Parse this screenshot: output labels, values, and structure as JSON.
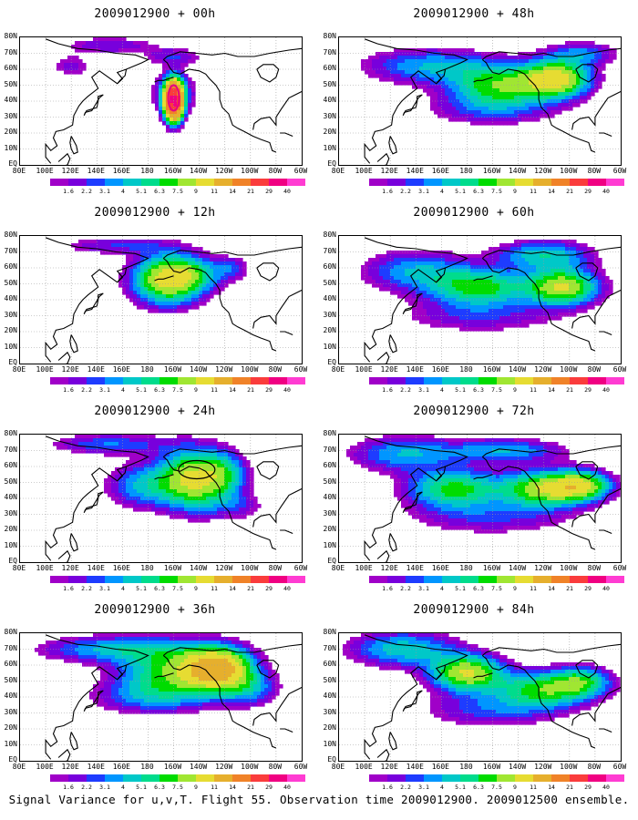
{
  "caption": "Signal Variance for u,v,T. Flight 55. Observation time 2009012900. 2009012500 ensemble.",
  "x_ticks": [
    "80E",
    "100E",
    "120E",
    "140E",
    "160E",
    "180",
    "160W",
    "140W",
    "120W",
    "100W",
    "80W",
    "60W"
  ],
  "y_ticks": [
    "80N",
    "70N",
    "60N",
    "50N",
    "40N",
    "30N",
    "20N",
    "10N",
    "EQ"
  ],
  "colorbar": {
    "levels": [
      "1.6",
      "2.2",
      "3.1",
      "4",
      "5.1",
      "6.3",
      "7.5",
      "9",
      "11",
      "14",
      "21",
      "29",
      "40"
    ],
    "colors": [
      "#a000c8",
      "#7800dc",
      "#1e3cff",
      "#0096ff",
      "#00c8c8",
      "#00dc8c",
      "#00dc00",
      "#a0e632",
      "#e6dc32",
      "#e6af2d",
      "#f08228",
      "#fa3c3c",
      "#f00082",
      "#ff3cd2"
    ]
  },
  "panels": [
    {
      "title": "2009012900 + 00h",
      "lead_hours": 0
    },
    {
      "title": "2009012900 + 48h",
      "lead_hours": 48
    },
    {
      "title": "2009012900 + 12h",
      "lead_hours": 12
    },
    {
      "title": "2009012900 + 60h",
      "lead_hours": 60
    },
    {
      "title": "2009012900 + 24h",
      "lead_hours": 24
    },
    {
      "title": "2009012900 + 72h",
      "lead_hours": 72
    },
    {
      "title": "2009012900 + 36h",
      "lead_hours": 36
    },
    {
      "title": "2009012900 + 84h",
      "lead_hours": 84
    }
  ],
  "chart_data": {
    "type": "heatmap",
    "title": "Signal Variance for u,v,T. Flight 55. Observation time 2009012900. 2009012500 ensemble.",
    "x_range": [
      "80E",
      "60W"
    ],
    "y_range": [
      "EQ",
      "80N"
    ],
    "contour_levels": [
      1.6,
      2.2,
      3.1,
      4,
      5.1,
      6.3,
      7.5,
      9,
      11,
      14,
      21,
      29,
      40
    ],
    "series": [
      {
        "lead_hours": 0,
        "approx_max": 40,
        "center_lon": "160W",
        "center_lat": 40
      },
      {
        "lead_hours": 12,
        "approx_max": 11,
        "center_lon": "160W",
        "center_lat": 48
      },
      {
        "lead_hours": 24,
        "approx_max": 11,
        "center_lon": "140W",
        "center_lat": 52
      },
      {
        "lead_hours": 36,
        "approx_max": 14,
        "center_lon": "130W",
        "center_lat": 57
      },
      {
        "lead_hours": 48,
        "approx_max": 11,
        "center_lon": "110W",
        "center_lat": 52
      },
      {
        "lead_hours": 60,
        "approx_max": 11,
        "center_lon": "100W",
        "center_lat": 48
      },
      {
        "lead_hours": 72,
        "approx_max": 11,
        "center_lon": "120W",
        "center_lat": 48
      },
      {
        "lead_hours": 84,
        "approx_max": 11,
        "center_lon": "160W",
        "center_lat": 50
      }
    ]
  }
}
